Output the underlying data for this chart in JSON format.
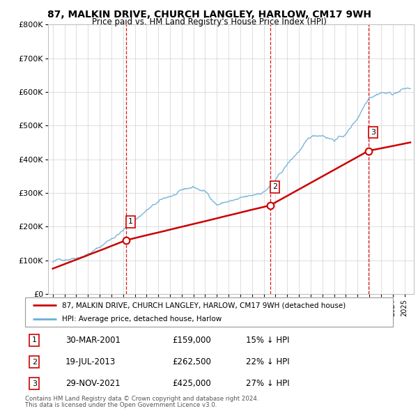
{
  "title": "87, MALKIN DRIVE, CHURCH LANGLEY, HARLOW, CM17 9WH",
  "subtitle": "Price paid vs. HM Land Registry's House Price Index (HPI)",
  "legend_line1": "87, MALKIN DRIVE, CHURCH LANGLEY, HARLOW, CM17 9WH (detached house)",
  "legend_line2": "HPI: Average price, detached house, Harlow",
  "footer1": "Contains HM Land Registry data © Crown copyright and database right 2024.",
  "footer2": "This data is licensed under the Open Government Licence v3.0.",
  "transactions": [
    {
      "label": "1",
      "date": "30-MAR-2001",
      "price": "£159,000",
      "hpi": "15% ↓ HPI",
      "year": 2001.25,
      "price_val": 159000
    },
    {
      "label": "2",
      "date": "19-JUL-2013",
      "price": "£262,500",
      "hpi": "22% ↓ HPI",
      "year": 2013.55,
      "price_val": 262500
    },
    {
      "label": "3",
      "date": "29-NOV-2021",
      "price": "£425,000",
      "hpi": "27% ↓ HPI",
      "year": 2021.92,
      "price_val": 425000
    }
  ],
  "hpi_color": "#6baed6",
  "price_color": "#cc0000",
  "dashed_line_color": "#dd0000",
  "ylim": [
    0,
    800000
  ],
  "yticks": [
    0,
    100000,
    200000,
    300000,
    400000,
    500000,
    600000,
    700000,
    800000
  ],
  "ytick_labels": [
    "£0",
    "£100K",
    "£200K",
    "£300K",
    "£400K",
    "£500K",
    "£600K",
    "£700K",
    "£800K"
  ],
  "xlim_start": 1994.6,
  "xlim_end": 2025.8,
  "background": "#ffffff",
  "grid_color": "#d8d8d8",
  "hpi_segments": [
    [
      1995,
      95000
    ],
    [
      1996,
      103000
    ],
    [
      1997,
      115000
    ],
    [
      1998,
      130000
    ],
    [
      1999,
      148000
    ],
    [
      2000,
      175000
    ],
    [
      2001,
      200000
    ],
    [
      2002,
      230000
    ],
    [
      2003,
      260000
    ],
    [
      2004,
      280000
    ],
    [
      2005,
      295000
    ],
    [
      2006,
      305000
    ],
    [
      2007,
      315000
    ],
    [
      2008,
      300000
    ],
    [
      2009,
      265000
    ],
    [
      2010,
      275000
    ],
    [
      2011,
      278000
    ],
    [
      2012,
      280000
    ],
    [
      2013,
      295000
    ],
    [
      2014,
      325000
    ],
    [
      2015,
      370000
    ],
    [
      2016,
      410000
    ],
    [
      2017,
      445000
    ],
    [
      2018,
      455000
    ],
    [
      2019,
      445000
    ],
    [
      2020,
      460000
    ],
    [
      2021,
      510000
    ],
    [
      2022,
      580000
    ],
    [
      2023,
      600000
    ],
    [
      2024,
      595000
    ],
    [
      2025,
      610000
    ]
  ],
  "price_segments": [
    [
      1995,
      75000
    ],
    [
      2001.25,
      159000
    ],
    [
      2013.55,
      262500
    ],
    [
      2021.92,
      425000
    ],
    [
      2025.5,
      450000
    ]
  ]
}
